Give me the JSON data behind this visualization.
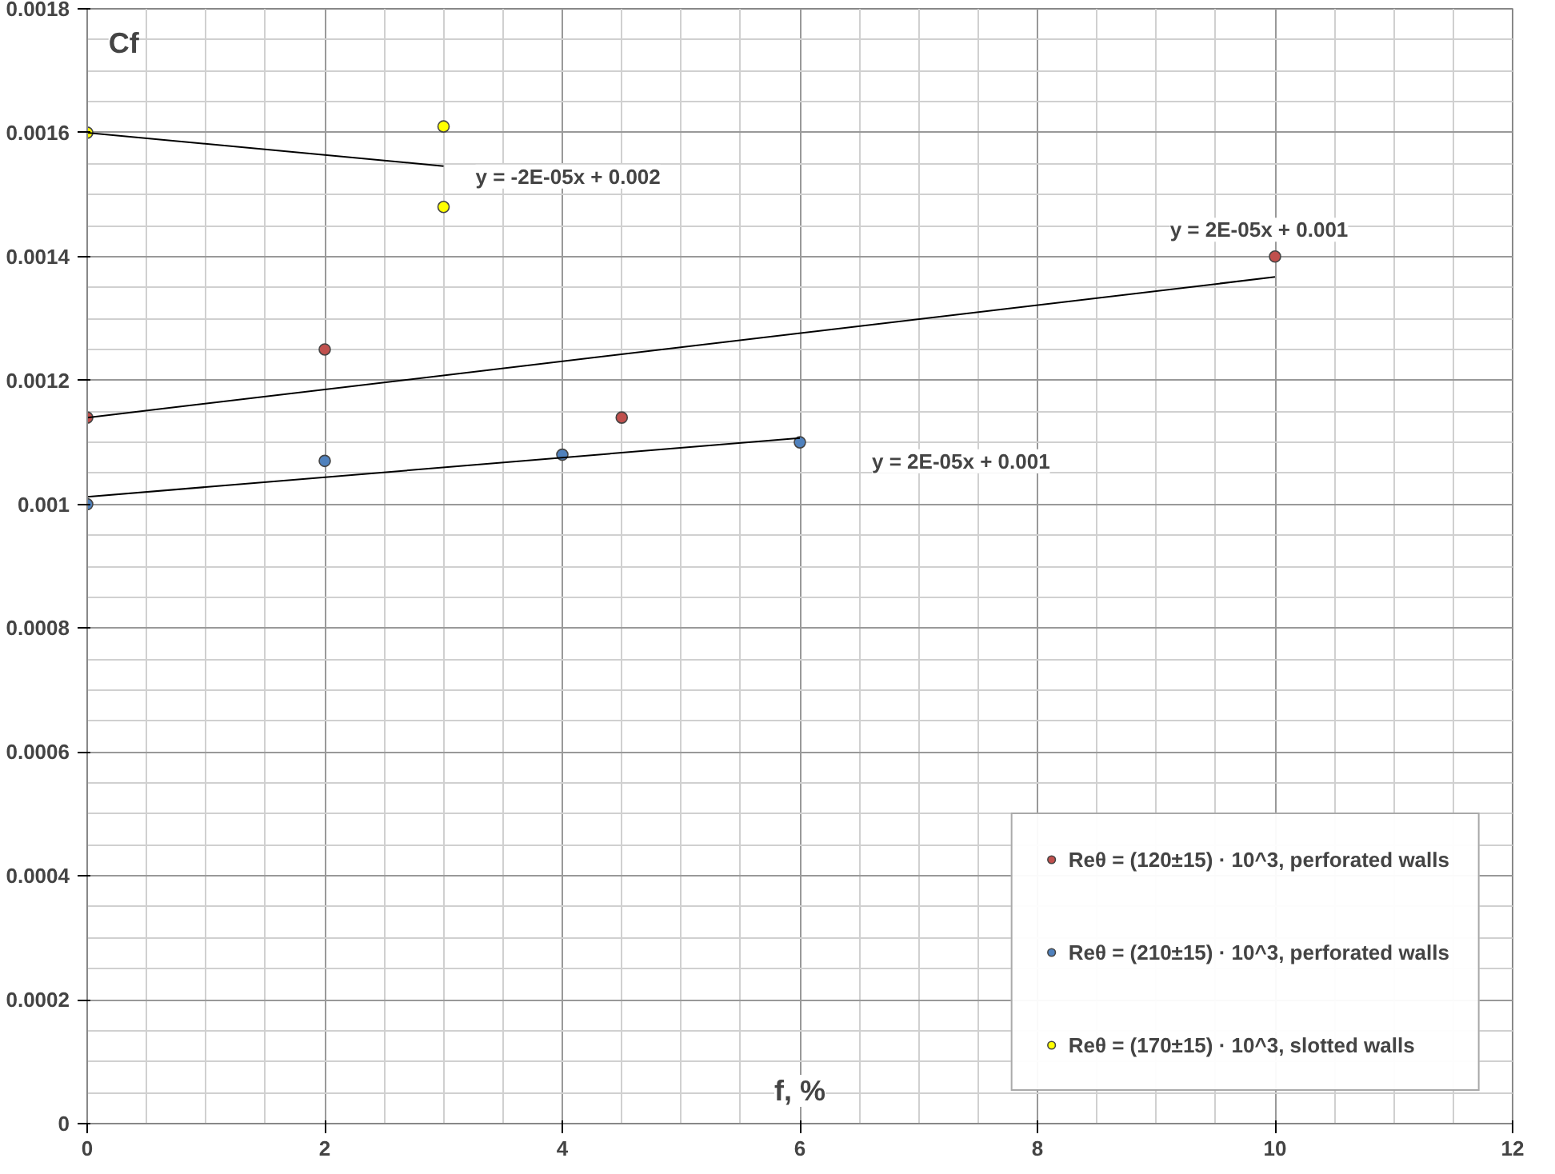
{
  "chart_data": {
    "type": "scatter",
    "xlabel": "f, %",
    "ylabel": "Cf",
    "xlim": [
      0,
      12
    ],
    "ylim": [
      0,
      0.0018
    ],
    "xticks": [
      0,
      2,
      4,
      6,
      8,
      10,
      12
    ],
    "yticks": [
      0,
      0.0002,
      0.0004,
      0.0006,
      0.0008,
      0.001,
      0.0012,
      0.0014,
      0.0016,
      0.0018
    ],
    "grid": true,
    "legend": "bottom right",
    "marker": "circle",
    "series": [
      {
        "name": "Reθ = (120±15) · 10^3, perforated walls",
        "color": "#c0504d",
        "x": [
          0,
          2,
          4.5,
          10
        ],
        "values": [
          0.00114,
          0.00125,
          0.00114,
          0.0014
        ]
      },
      {
        "name": "Reθ = (210±15) · 10^3, perforated walls",
        "color": "#4f81bd",
        "x": [
          0,
          2,
          4,
          6
        ],
        "values": [
          0.001,
          0.00107,
          0.00108,
          0.0011
        ]
      },
      {
        "name": "Reθ = (170±15) · 10^3, slotted walls",
        "color": "#ffff00",
        "x": [
          0,
          3,
          3
        ],
        "values": [
          0.0016,
          0.00161,
          0.00148
        ]
      },
      {
        "type": "line",
        "marker": "none",
        "color": "#000000",
        "x": [
          0,
          10
        ],
        "values": [
          0.00114,
          0.001367
        ]
      },
      {
        "type": "line",
        "marker": "none",
        "color": "#000000",
        "x": [
          0,
          6
        ],
        "values": [
          0.001012,
          0.001107
        ]
      },
      {
        "type": "line",
        "marker": "none",
        "color": "#000000",
        "x": [
          0,
          3
        ],
        "values": [
          0.0016,
          0.001546
        ]
      }
    ],
    "annotations": [
      "y = 2E-05x + 0.001",
      "y = 2E-05x + 0.001",
      "y = -2E-05x + 0.002"
    ]
  }
}
